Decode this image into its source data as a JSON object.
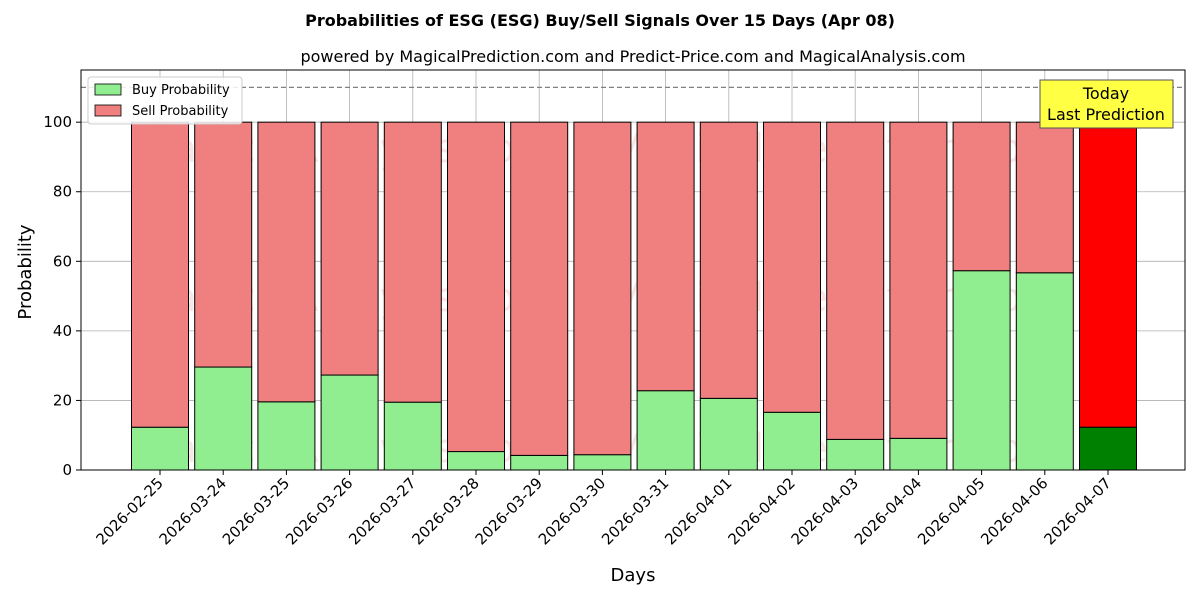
{
  "chart_data": {
    "type": "bar",
    "stacked": true,
    "title": "Probabilities of ESG (ESG) Buy/Sell Signals Over 15 Days (Apr 08)",
    "subtitle": "powered by MagicalPrediction.com and Predict-Price.com and MagicalAnalysis.com",
    "xlabel": "Days",
    "ylabel": "Probability",
    "ylim": [
      0,
      115
    ],
    "yticks": [
      0,
      20,
      40,
      60,
      80,
      100
    ],
    "reference_line": 110,
    "grid": true,
    "legend_position": "top-left",
    "categories": [
      "2026-02-25",
      "2026-03-24",
      "2026-03-25",
      "2026-03-26",
      "2026-03-27",
      "2026-03-28",
      "2026-03-29",
      "2026-03-30",
      "2026-03-31",
      "2026-04-01",
      "2026-04-02",
      "2026-04-03",
      "2026-04-04",
      "2026-04-05",
      "2026-04-06",
      "2026-04-07"
    ],
    "series": [
      {
        "name": "Buy Probability",
        "color": "#90ee90",
        "highlight_color": "#008000",
        "values": [
          12.3,
          29.6,
          19.6,
          27.3,
          19.5,
          5.3,
          4.2,
          4.4,
          22.8,
          20.6,
          16.6,
          8.8,
          9.1,
          57.3,
          56.7,
          12.3
        ]
      },
      {
        "name": "Sell Probability",
        "color": "#f08080",
        "highlight_color": "#ff0000",
        "values": [
          87.7,
          70.4,
          80.4,
          72.7,
          80.5,
          94.7,
          95.8,
          95.6,
          77.2,
          79.4,
          83.4,
          91.2,
          90.9,
          42.7,
          43.3,
          87.7
        ]
      }
    ],
    "highlight_index": 15,
    "annotation": {
      "line1": "Today",
      "line2": "Last Prediction",
      "color": "#ffff44"
    },
    "watermarks": [
      "MagicalAnalysis.com",
      "MagicalPrediction.com"
    ]
  }
}
